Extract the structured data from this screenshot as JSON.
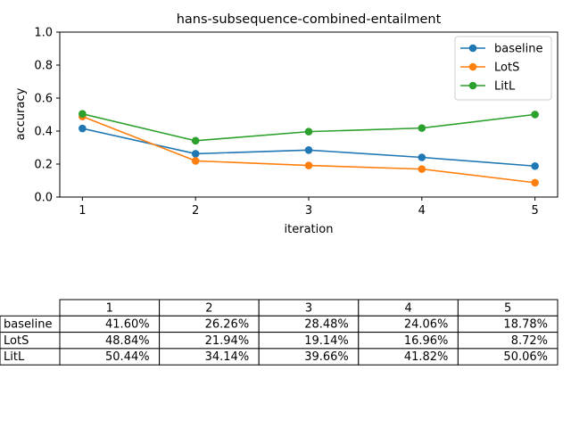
{
  "chart_data": {
    "type": "line",
    "title": "hans-subsequence-combined-entailment",
    "xlabel": "iteration",
    "ylabel": "accuracy",
    "x": [
      1,
      2,
      3,
      4,
      5
    ],
    "x_tick_labels": [
      "1",
      "2",
      "3",
      "4",
      "5"
    ],
    "ylim": [
      0.0,
      1.0
    ],
    "y_ticks": [
      0.0,
      0.2,
      0.4,
      0.6,
      0.8,
      1.0
    ],
    "y_tick_labels": [
      "0.0",
      "0.2",
      "0.4",
      "0.6",
      "0.8",
      "1.0"
    ],
    "grid": false,
    "legend_position": "top-right",
    "series": [
      {
        "name": "baseline",
        "color": "#1f77b4",
        "values": [
          0.416,
          0.2626,
          0.2848,
          0.2406,
          0.1878
        ]
      },
      {
        "name": "LotS",
        "color": "#ff7f0e",
        "values": [
          0.4884,
          0.2194,
          0.1914,
          0.1696,
          0.0872
        ]
      },
      {
        "name": "LitL",
        "color": "#2ca02c",
        "values": [
          0.5044,
          0.3414,
          0.3966,
          0.4182,
          0.5006
        ]
      }
    ],
    "table": {
      "columns": [
        "1",
        "2",
        "3",
        "4",
        "5"
      ],
      "rows": [
        {
          "label": "baseline",
          "cells": [
            "41.60%",
            "26.26%",
            "28.48%",
            "24.06%",
            "18.78%"
          ]
        },
        {
          "label": "LotS",
          "cells": [
            "48.84%",
            "21.94%",
            "19.14%",
            "16.96%",
            "8.72%"
          ]
        },
        {
          "label": "LitL",
          "cells": [
            "50.44%",
            "34.14%",
            "39.66%",
            "41.82%",
            "50.06%"
          ]
        }
      ]
    }
  }
}
